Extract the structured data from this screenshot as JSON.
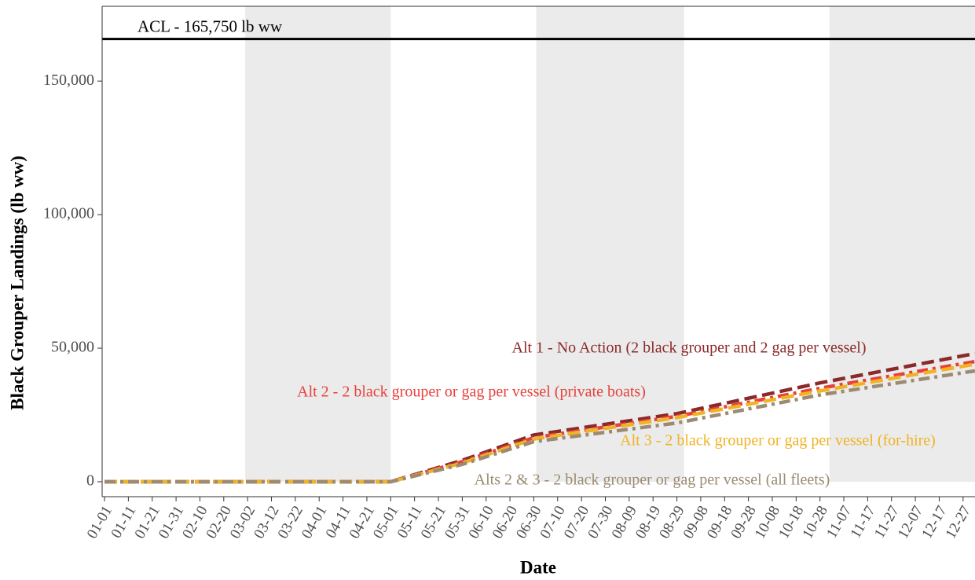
{
  "chart_data": {
    "type": "line",
    "ylabel": "Black Grouper Landings (lb ww)",
    "xlabel": "Date",
    "xlim": [
      -1,
      365
    ],
    "ylim": [
      -5600,
      178000
    ],
    "yticks": [
      0,
      {
        "value": 50000,
        "label": "50,000"
      },
      {
        "value": 100000,
        "label": "100,000"
      },
      {
        "value": 150000,
        "label": "150,000"
      }
    ],
    "xticks": [
      {
        "value": 0,
        "label": "01-01"
      },
      {
        "value": 10,
        "label": "01-11"
      },
      {
        "value": 20,
        "label": "01-21"
      },
      {
        "value": 30,
        "label": "01-31"
      },
      {
        "value": 40,
        "label": "02-10"
      },
      {
        "value": 50,
        "label": "02-20"
      },
      {
        "value": 60,
        "label": "03-02"
      },
      {
        "value": 70,
        "label": "03-12"
      },
      {
        "value": 80,
        "label": "03-22"
      },
      {
        "value": 90,
        "label": "04-01"
      },
      {
        "value": 100,
        "label": "04-11"
      },
      {
        "value": 110,
        "label": "04-21"
      },
      {
        "value": 120,
        "label": "05-01"
      },
      {
        "value": 130,
        "label": "05-11"
      },
      {
        "value": 140,
        "label": "05-21"
      },
      {
        "value": 150,
        "label": "05-31"
      },
      {
        "value": 160,
        "label": "06-10"
      },
      {
        "value": 170,
        "label": "06-20"
      },
      {
        "value": 180,
        "label": "06-30"
      },
      {
        "value": 190,
        "label": "07-10"
      },
      {
        "value": 200,
        "label": "07-20"
      },
      {
        "value": 210,
        "label": "07-30"
      },
      {
        "value": 220,
        "label": "08-09"
      },
      {
        "value": 230,
        "label": "08-19"
      },
      {
        "value": 240,
        "label": "08-29"
      },
      {
        "value": 250,
        "label": "09-08"
      },
      {
        "value": 260,
        "label": "09-18"
      },
      {
        "value": 270,
        "label": "09-28"
      },
      {
        "value": 280,
        "label": "10-08"
      },
      {
        "value": 290,
        "label": "10-18"
      },
      {
        "value": 300,
        "label": "10-28"
      },
      {
        "value": 310,
        "label": "11-07"
      },
      {
        "value": 320,
        "label": "11-17"
      },
      {
        "value": 330,
        "label": "11-27"
      },
      {
        "value": 340,
        "label": "12-07"
      },
      {
        "value": 350,
        "label": "12-17"
      },
      {
        "value": 360,
        "label": "12-27"
      }
    ],
    "shaded_periods": [
      [
        59,
        120
      ],
      [
        181,
        243
      ],
      [
        304,
        365
      ]
    ],
    "reference_line": {
      "value": 165750,
      "label": "ACL - 165,750 lb ww"
    },
    "x": [
      0,
      120,
      150,
      180,
      240,
      300,
      365
    ],
    "series": [
      {
        "name": "Alt 1 - No Action (2 black grouper and 2 gag per vessel)",
        "color": "#8b2a2a",
        "linestyle": "dashed",
        "values": [
          0,
          0,
          8000,
          17500,
          25500,
          37000,
          48000
        ]
      },
      {
        "name": "Alt 2 - 2 black grouper or gag per vessel (private boats)",
        "color": "#e8413c",
        "linestyle": "dashdot",
        "values": [
          0,
          0,
          7500,
          16500,
          24500,
          35000,
          45000
        ]
      },
      {
        "name": "Alt 3 - 2 black grouper or gag per vessel (for-hire)",
        "color": "#f0b323",
        "linestyle": "dashed",
        "values": [
          0,
          0,
          7000,
          16000,
          24000,
          34000,
          44000
        ]
      },
      {
        "name": "Alts 2 & 3 - 2 black grouper or gag per vessel (all fleets)",
        "color": "#9c8a72",
        "linestyle": "dashdot",
        "values": [
          0,
          0,
          6500,
          15000,
          22000,
          32500,
          41500
        ]
      }
    ]
  }
}
